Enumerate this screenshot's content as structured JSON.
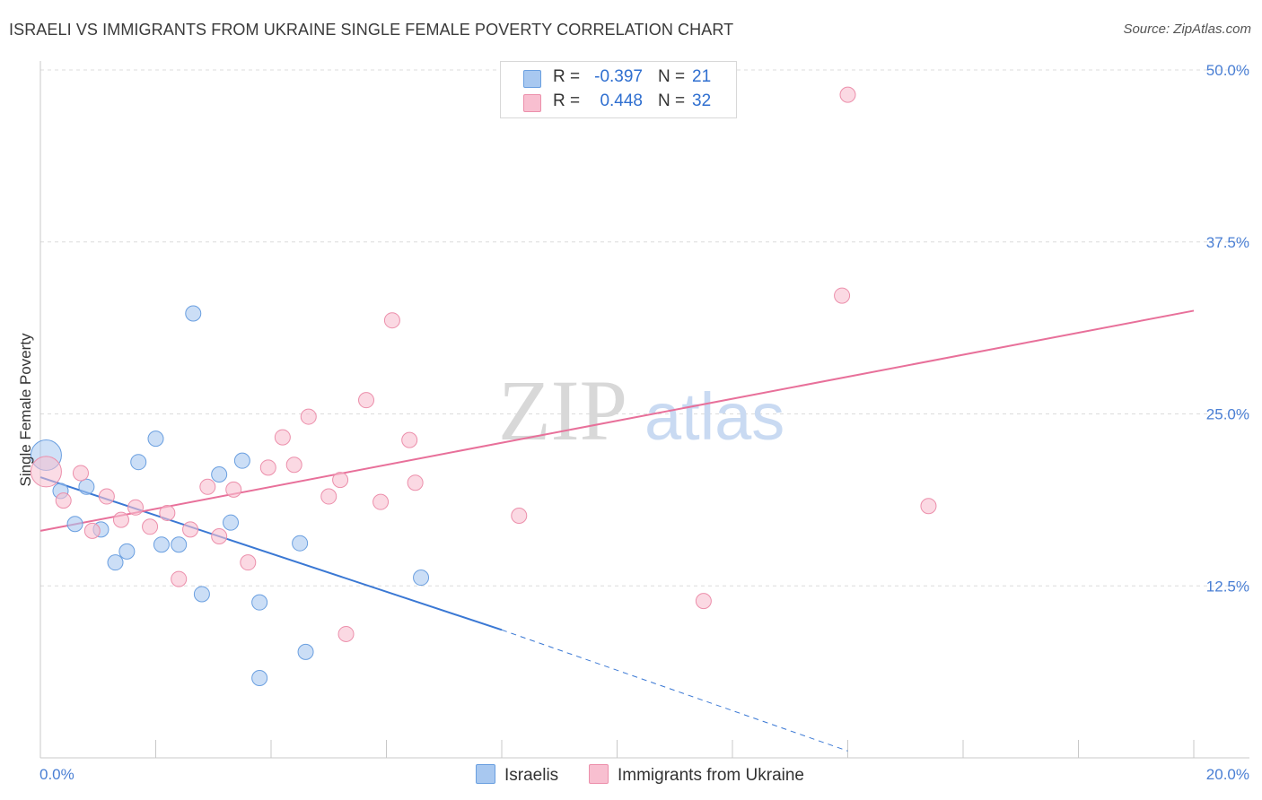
{
  "header": {
    "title": "ISRAELI VS IMMIGRANTS FROM UKRAINE SINGLE FEMALE POVERTY CORRELATION CHART",
    "source": "Source: ZipAtlas.com"
  },
  "watermark": {
    "zip": "ZIP",
    "atlas": "atlas"
  },
  "legend": {
    "rows": [
      {
        "r_label": "R =",
        "r_value": "-0.397",
        "n_label": "N =",
        "n_value": "21",
        "color": "#a8c8f0",
        "stroke": "#6a9fe0"
      },
      {
        "r_label": "R =",
        "r_value": "0.448",
        "n_label": "N =",
        "n_value": "32",
        "color": "#f8bfd0",
        "stroke": "#ec8fab"
      }
    ]
  },
  "chart_data": {
    "type": "scatter",
    "title": "ISRAELI VS IMMIGRANTS FROM UKRAINE SINGLE FEMALE POVERTY CORRELATION CHART",
    "xlabel": "",
    "ylabel": "Single Female Poverty",
    "xlim": [
      0,
      20
    ],
    "ylim": [
      0,
      50
    ],
    "x_tick_labels": [
      "0.0%",
      "20.0%"
    ],
    "y_ticks": [
      12.5,
      25.0,
      37.5,
      50.0
    ],
    "y_tick_labels": [
      "12.5%",
      "25.0%",
      "37.5%",
      "50.0%"
    ],
    "series": [
      {
        "name": "Israelis",
        "color": "#a8c8f0",
        "stroke": "#6a9fe0",
        "line_color": "#3a78d4",
        "trend": {
          "x0": 0.0,
          "y0": 20.4,
          "x1": 8.0,
          "y1": 9.3,
          "dash_to_x": 14.0,
          "dash_to_y": 0.5
        },
        "points": [
          {
            "x": 0.1,
            "y": 22.0,
            "big": true
          },
          {
            "x": 0.35,
            "y": 19.4
          },
          {
            "x": 0.6,
            "y": 17.0
          },
          {
            "x": 0.8,
            "y": 19.7
          },
          {
            "x": 1.05,
            "y": 16.6
          },
          {
            "x": 1.3,
            "y": 14.2
          },
          {
            "x": 1.5,
            "y": 15.0
          },
          {
            "x": 1.7,
            "y": 21.5
          },
          {
            "x": 2.0,
            "y": 23.2
          },
          {
            "x": 2.1,
            "y": 15.5
          },
          {
            "x": 2.4,
            "y": 15.5
          },
          {
            "x": 2.65,
            "y": 32.3
          },
          {
            "x": 2.8,
            "y": 11.9
          },
          {
            "x": 3.1,
            "y": 20.6
          },
          {
            "x": 3.3,
            "y": 17.1
          },
          {
            "x": 3.5,
            "y": 21.6
          },
          {
            "x": 3.8,
            "y": 11.3
          },
          {
            "x": 3.8,
            "y": 5.8
          },
          {
            "x": 4.5,
            "y": 15.6
          },
          {
            "x": 4.6,
            "y": 7.7
          },
          {
            "x": 6.6,
            "y": 13.1
          }
        ]
      },
      {
        "name": "Immigrants from Ukraine",
        "color": "#f8bfd0",
        "stroke": "#ec8fab",
        "line_color": "#e8709a",
        "trend": {
          "x0": 0.0,
          "y0": 16.5,
          "x1": 20.0,
          "y1": 32.5
        },
        "points": [
          {
            "x": 0.1,
            "y": 20.8,
            "big": true
          },
          {
            "x": 0.4,
            "y": 18.7
          },
          {
            "x": 0.7,
            "y": 20.7
          },
          {
            "x": 0.9,
            "y": 16.5
          },
          {
            "x": 1.15,
            "y": 19.0
          },
          {
            "x": 1.4,
            "y": 17.3
          },
          {
            "x": 1.65,
            "y": 18.2
          },
          {
            "x": 1.9,
            "y": 16.8
          },
          {
            "x": 2.2,
            "y": 17.8
          },
          {
            "x": 2.4,
            "y": 13.0
          },
          {
            "x": 2.6,
            "y": 16.6
          },
          {
            "x": 2.9,
            "y": 19.7
          },
          {
            "x": 3.1,
            "y": 16.1
          },
          {
            "x": 3.35,
            "y": 19.5
          },
          {
            "x": 3.6,
            "y": 14.2
          },
          {
            "x": 3.95,
            "y": 21.1
          },
          {
            "x": 4.2,
            "y": 23.3
          },
          {
            "x": 4.4,
            "y": 21.3
          },
          {
            "x": 4.65,
            "y": 24.8
          },
          {
            "x": 5.0,
            "y": 19.0
          },
          {
            "x": 5.2,
            "y": 20.2
          },
          {
            "x": 5.3,
            "y": 9.0
          },
          {
            "x": 5.65,
            "y": 26.0
          },
          {
            "x": 5.9,
            "y": 18.6
          },
          {
            "x": 6.1,
            "y": 31.8
          },
          {
            "x": 6.4,
            "y": 23.1
          },
          {
            "x": 6.5,
            "y": 20.0
          },
          {
            "x": 8.3,
            "y": 17.6
          },
          {
            "x": 11.5,
            "y": 11.4
          },
          {
            "x": 13.9,
            "y": 33.6
          },
          {
            "x": 14.0,
            "y": 48.2
          },
          {
            "x": 15.4,
            "y": 18.3
          }
        ]
      }
    ]
  }
}
